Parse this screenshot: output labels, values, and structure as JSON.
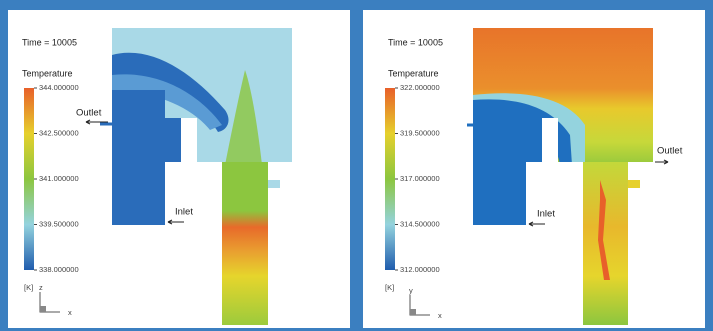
{
  "panels": [
    {
      "time": "Time = 10005",
      "legend_title": "Temperature",
      "ticks": [
        "344.000000",
        "342.500000",
        "341.000000",
        "339.500000",
        "338.000000"
      ],
      "unit": "[K]",
      "outlet": "Outlet",
      "inlet": "Inlet",
      "axis_vertical": "z",
      "axis_horizontal": "x"
    },
    {
      "time": "Time = 10005",
      "legend_title": "Temperature",
      "ticks": [
        "322.000000",
        "319.500000",
        "317.000000",
        "314.500000",
        "312.000000"
      ],
      "unit": "[K]",
      "outlet": "Outlet",
      "inlet": "Inlet",
      "axis_vertical": "y",
      "axis_horizontal": "x"
    }
  ]
}
